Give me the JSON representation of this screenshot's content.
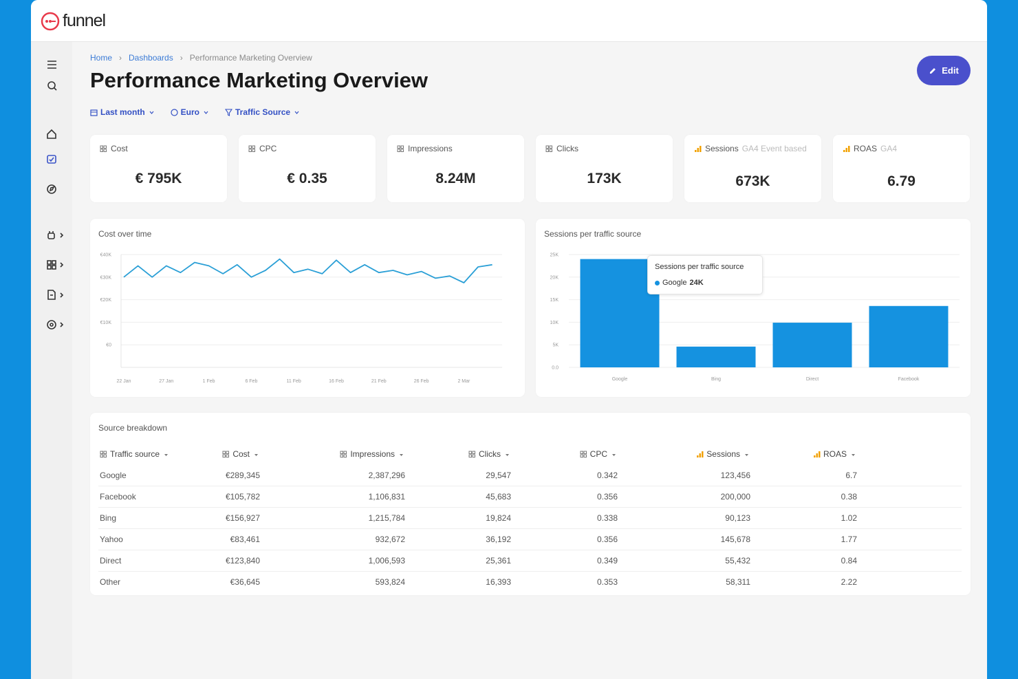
{
  "header": {
    "logo": "funnel"
  },
  "breadcrumb": [
    "Home",
    "Dashboards",
    "Performance Marketing Overview"
  ],
  "title": "Performance Marketing Overview",
  "edit_button": "Edit",
  "filters": [
    "Last month",
    "Euro",
    "Traffic Source"
  ],
  "kpis": [
    {
      "label": "Cost",
      "value": "€ 795K"
    },
    {
      "label": "CPC",
      "value": "€ 0.35"
    },
    {
      "label": "Impressions",
      "value": "8.24M"
    },
    {
      "label": "Clicks",
      "value": "173K"
    },
    {
      "label": "Sessions",
      "sublabel": "GA4 Event based",
      "value": "673K"
    },
    {
      "label": "ROAS",
      "sublabel": "GA4",
      "value": "6.79"
    }
  ],
  "chart_data": [
    {
      "type": "line",
      "title": "Cost over time",
      "categories": [
        "22 Jan",
        null,
        null,
        "27 Jan",
        null,
        null,
        "1 Feb",
        null,
        null,
        "6 Feb",
        null,
        null,
        "11 Feb",
        null,
        null,
        "16 Feb",
        null,
        null,
        "21 Feb",
        null,
        null,
        "26 Feb",
        null,
        null,
        "2 Mar",
        null,
        null
      ],
      "values": [
        30000,
        35000,
        30000,
        35000,
        32000,
        36500,
        35000,
        31500,
        35500,
        30000,
        33000,
        38000,
        32000,
        33500,
        31500,
        37500,
        32000,
        35500,
        32000,
        33000,
        31000,
        32500,
        29500,
        30500,
        27500,
        34500,
        35500
      ],
      "color": "#2a9fd6",
      "ylim": [
        -10000,
        40000
      ],
      "yticks": [
        {
          "value": 40000,
          "label": "€40K"
        },
        {
          "value": 30000,
          "label": "€30K"
        },
        {
          "value": 20000,
          "label": "€20K"
        },
        {
          "value": 10000,
          "label": "€10K"
        },
        {
          "value": 0,
          "label": "€0"
        }
      ],
      "grid": true
    },
    {
      "type": "bar",
      "title": "Sessions per traffic source",
      "categories": [
        "Google",
        "Bing",
        "Direct",
        "Facebook"
      ],
      "values": [
        24000,
        4600,
        9900,
        13600
      ],
      "color": "#1592e0",
      "ylim": [
        0,
        25000
      ],
      "yticks": [
        {
          "value": 25000,
          "label": "25K"
        },
        {
          "value": 20000,
          "label": "20K"
        },
        {
          "value": 15000,
          "label": "15K"
        },
        {
          "value": 10000,
          "label": "10K"
        },
        {
          "value": 5000,
          "label": "5K"
        },
        {
          "value": 0,
          "label": "0.0"
        }
      ],
      "grid": true,
      "tooltip": {
        "title": "Sessions per traffic source",
        "label": "Google",
        "value": "24K"
      }
    }
  ],
  "table": {
    "title": "Source breakdown",
    "columns": [
      "Traffic source",
      "Cost",
      "Impressions",
      "Clicks",
      "CPC",
      "Sessions",
      "ROAS"
    ],
    "rows": [
      [
        "Google",
        "€289,345",
        "2,387,296",
        "29,547",
        "0.342",
        "123,456",
        "6.7"
      ],
      [
        "Facebook",
        "€105,782",
        "1,106,831",
        "45,683",
        "0.356",
        "200,000",
        "0.38"
      ],
      [
        "Bing",
        "€156,927",
        "1,215,784",
        "19,824",
        "0.338",
        "90,123",
        "1.02"
      ],
      [
        "Yahoo",
        "€83,461",
        "932,672",
        "36,192",
        "0.356",
        "145,678",
        "1.77"
      ],
      [
        "Direct",
        "€123,840",
        "1,006,593",
        "25,361",
        "0.349",
        "55,432",
        "0.84"
      ],
      [
        "Other",
        "€36,645",
        "593,824",
        "16,393",
        "0.353",
        "58,311",
        "2.22"
      ]
    ]
  }
}
